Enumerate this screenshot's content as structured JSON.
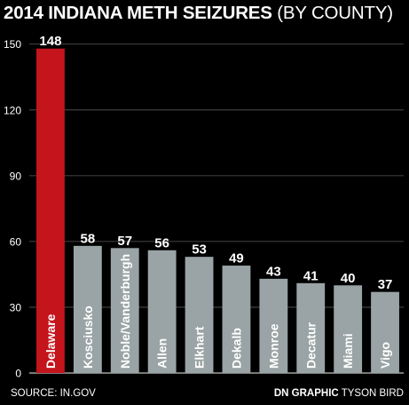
{
  "chart_data": {
    "type": "bar",
    "title": "2014 INDIANA METH SEIZURES",
    "subtitle": "(BY COUNTY)",
    "categories": [
      "Delaware",
      "Kosciusko",
      "Noble/Vanderburgh",
      "Allen",
      "Elkhart",
      "Dekalb",
      "Monroe",
      "Decatur",
      "Miami",
      "Vigo"
    ],
    "values": [
      148,
      58,
      57,
      56,
      53,
      49,
      43,
      41,
      40,
      37
    ],
    "data_labels": [
      "148",
      "58",
      "57",
      "56",
      "53",
      "49",
      "43",
      "41",
      "40",
      "37"
    ],
    "yticks": [
      0,
      30,
      60,
      90,
      120,
      150
    ],
    "ytick_labels": [
      "0",
      "30",
      "60",
      "90",
      "120",
      "150"
    ],
    "ylim": [
      0,
      158
    ],
    "grid": true,
    "highlight_index": 0,
    "colors": {
      "highlight": "#c4141c",
      "bar": "#9aa3a5",
      "background": "#000000",
      "grid": "#5a5a5a",
      "text": "#ffffff"
    }
  },
  "footer": {
    "source": "SOURCE: IN.GOV",
    "credit_strong": "DN GRAPHIC",
    "credit_name": "TYSON BIRD"
  }
}
